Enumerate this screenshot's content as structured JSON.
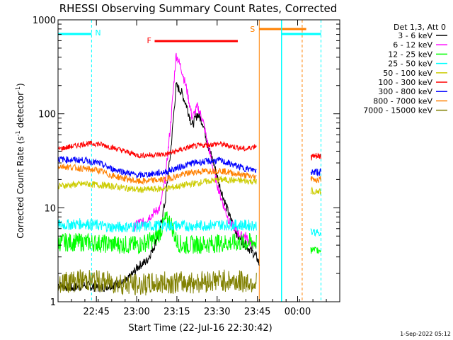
{
  "chart_data": {
    "type": "line",
    "title": "RHESSI Observing Summary Count Rates, Corrected",
    "xlabel": "Start Time (22-Jul-16 22:30:42)",
    "ylabel_main": "Corrected Count Rate (s",
    "ylabel_sup1": "-1",
    "ylabel_mid": " detector",
    "ylabel_sup2": "-1",
    "ylabel_end": ")",
    "yscale": "log",
    "ylim": [
      1,
      1000
    ],
    "xlim_minutes": [
      0,
      105
    ],
    "x_ticks": [
      {
        "m": 14.3,
        "label": "22:45"
      },
      {
        "m": 29.3,
        "label": "23:00"
      },
      {
        "m": 44.3,
        "label": "23:15"
      },
      {
        "m": 59.3,
        "label": "23:30"
      },
      {
        "m": 74.3,
        "label": "23:45"
      },
      {
        "m": 89.3,
        "label": "00:00"
      }
    ],
    "y_ticks": [
      {
        "v": 1,
        "label": "1"
      },
      {
        "v": 10,
        "label": "10"
      },
      {
        "v": 100,
        "label": "100"
      },
      {
        "v": 1000,
        "label": "1000"
      }
    ],
    "legend_title": "Det 1,3, Att 0",
    "legend_placement": "right",
    "series": [
      {
        "name": "3 - 6 keV",
        "color": "#000000",
        "x": [
          0,
          5,
          10,
          15,
          20,
          25,
          28,
          30,
          33,
          36,
          38,
          40,
          42,
          44,
          46,
          48,
          50,
          52,
          54,
          56,
          58,
          60,
          62,
          64,
          66,
          67,
          70,
          72,
          74,
          75
        ],
        "y": [
          1.5,
          1.4,
          1.5,
          1.4,
          1.5,
          1.6,
          2.0,
          2.4,
          2.7,
          4,
          6,
          12,
          40,
          200,
          170,
          120,
          75,
          100,
          80,
          45,
          30,
          18,
          12,
          8,
          6,
          5,
          4,
          3.5,
          3,
          2.5
        ]
      },
      {
        "name": "6 - 12 keV",
        "color": "#ff00ff",
        "x": [
          28,
          30,
          32,
          34,
          36,
          38,
          40,
          42,
          44,
          46,
          48,
          50,
          52,
          54,
          56,
          58,
          60,
          62,
          64,
          66,
          68,
          70,
          72,
          74
        ],
        "y": [
          6,
          7,
          7,
          8,
          9,
          10,
          20,
          80,
          430,
          300,
          180,
          90,
          120,
          85,
          45,
          25,
          15,
          10,
          7,
          6,
          5,
          5,
          4,
          4
        ]
      },
      {
        "name": "12 - 25 keV",
        "color": "#00ff00",
        "x": [
          0,
          10,
          20,
          30,
          36,
          38,
          40,
          42,
          44,
          46,
          48,
          60,
          74
        ],
        "y": [
          4.3,
          4.3,
          4.1,
          4.0,
          4.6,
          5.5,
          7.5,
          7.0,
          4.5,
          4.0,
          4.0,
          4.2,
          4.3
        ]
      },
      {
        "name": "25 - 50 keV",
        "color": "#00ffff",
        "x": [
          0,
          10,
          20,
          30,
          40,
          50,
          60,
          74
        ],
        "y": [
          6.5,
          6.8,
          6.2,
          6.3,
          6.5,
          6.4,
          6.6,
          6.5
        ]
      },
      {
        "name": "50 - 100 keV",
        "color": "#cccc00",
        "x": [
          0,
          10,
          20,
          30,
          40,
          50,
          60,
          74
        ],
        "y": [
          17,
          18,
          17,
          15.5,
          16,
          18,
          20,
          19
        ]
      },
      {
        "name": "100 - 300 keV",
        "color": "#ff0000",
        "x": [
          0,
          10,
          15,
          20,
          30,
          40,
          50,
          60,
          70,
          74
        ],
        "y": [
          42,
          48,
          48,
          44,
          36,
          37,
          45,
          48,
          42,
          46
        ]
      },
      {
        "name": "300 - 800 keV",
        "color": "#0000ff",
        "x": [
          0,
          10,
          15,
          20,
          30,
          40,
          50,
          60,
          70,
          74
        ],
        "y": [
          33,
          32,
          30,
          26,
          22,
          24,
          30,
          32,
          26,
          25
        ]
      },
      {
        "name": "800 - 7000 keV",
        "color": "#ff8000",
        "x": [
          0,
          10,
          15,
          20,
          30,
          40,
          50,
          60,
          70,
          74
        ],
        "y": [
          28,
          26,
          25,
          22,
          19,
          20,
          24,
          25,
          22,
          21
        ]
      },
      {
        "name": "7000 - 15000 keV",
        "color": "#808000",
        "x": [
          0,
          10,
          20,
          30,
          40,
          50,
          60,
          74
        ],
        "y": [
          1.6,
          1.7,
          1.6,
          1.5,
          1.6,
          1.6,
          1.7,
          1.6
        ]
      }
    ],
    "second_segment": {
      "x_range": [
        94.2,
        98
      ],
      "values": [
        {
          "color": "#ff0000",
          "y": 35
        },
        {
          "color": "#0000ff",
          "y": 24
        },
        {
          "color": "#ff8000",
          "y": 20
        },
        {
          "color": "#cccc00",
          "y": 15
        },
        {
          "color": "#00ffff",
          "y": 5.5
        },
        {
          "color": "#00ff00",
          "y": 3.5
        }
      ]
    },
    "annotations": [
      {
        "label": "N",
        "color": "#00ffff"
      },
      {
        "label": "F",
        "color": "#ff0000"
      },
      {
        "label": "S",
        "color": "#ff8000"
      }
    ]
  },
  "footer_date": "1-Sep-2022 05:12"
}
